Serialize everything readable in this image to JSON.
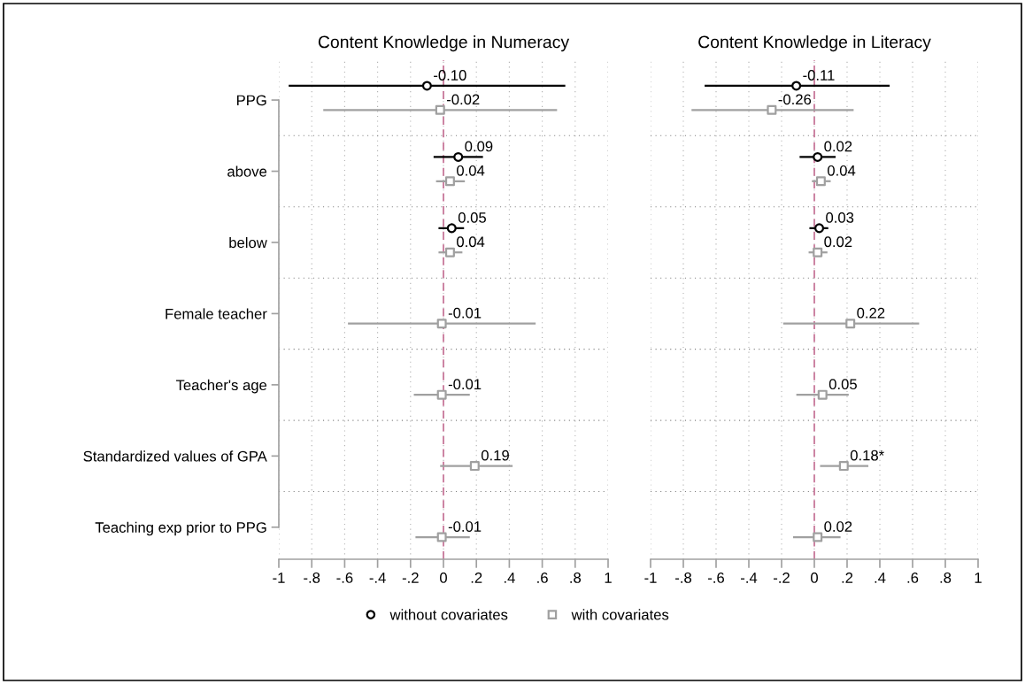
{
  "chart_data": [
    {
      "type": "scatter",
      "orientation": "horizontal",
      "title": "Content Knowledge in Numeracy",
      "categories": [
        "PPG",
        "above",
        "below",
        "Female teacher",
        "Teacher's age",
        "Standardized values of GPA",
        "Teaching exp prior to PPG"
      ],
      "series": [
        {
          "name": "without covariates",
          "color": "#000000",
          "marker": "circle",
          "values": [
            -0.1,
            0.09,
            0.05,
            null,
            null,
            null,
            null
          ],
          "errors": [
            [
              -0.94,
              0.74
            ],
            [
              -0.06,
              0.24
            ],
            [
              -0.03,
              0.125
            ],
            null,
            null,
            null,
            null
          ],
          "value_labels": [
            "-0.10",
            "0.09",
            "0.05",
            null,
            null,
            null,
            null
          ]
        },
        {
          "name": "with covariates",
          "color": "#a0a0a0",
          "marker": "square",
          "values": [
            -0.02,
            0.04,
            0.04,
            -0.01,
            -0.01,
            0.19,
            -0.01
          ],
          "errors": [
            [
              -0.73,
              0.69
            ],
            [
              -0.045,
              0.13
            ],
            [
              -0.03,
              0.115
            ],
            [
              -0.58,
              0.56
            ],
            [
              -0.18,
              0.16
            ],
            [
              -0.02,
              0.42
            ],
            [
              -0.17,
              0.16
            ]
          ],
          "value_labels": [
            "-0.02",
            "0.04",
            "0.04",
            "-0.01",
            "-0.01",
            "0.19",
            "-0.01"
          ]
        }
      ],
      "xlim": [
        -1,
        1
      ],
      "xticks": [
        -1,
        {
          "value": -0.8,
          "label": "-.8"
        },
        {
          "value": -0.6,
          "label": "-.6"
        },
        {
          "value": -0.4,
          "label": "-.4"
        },
        {
          "value": -0.2,
          "label": "-.2"
        },
        0,
        {
          "value": 0.2,
          "label": ".2"
        },
        {
          "value": 0.4,
          "label": ".4"
        },
        {
          "value": 0.6,
          "label": ".6"
        },
        {
          "value": 0.8,
          "label": ".8"
        },
        1
      ],
      "ref_lines": [
        {
          "axis": "x",
          "value": 0,
          "color": "#c9799b",
          "line_style": "dashed"
        }
      ],
      "grid": true,
      "legend": "bottom"
    },
    {
      "type": "scatter",
      "orientation": "horizontal",
      "title": "Content Knowledge in Literacy",
      "categories": [
        "PPG",
        "above",
        "below",
        "Female teacher",
        "Teacher's age",
        "Standardized values of GPA",
        "Teaching exp prior to PPG"
      ],
      "series": [
        {
          "name": "without covariates",
          "color": "#000000",
          "marker": "circle",
          "values": [
            -0.11,
            0.02,
            0.03,
            null,
            null,
            null,
            null
          ],
          "errors": [
            [
              -0.67,
              0.46
            ],
            [
              -0.09,
              0.13
            ],
            [
              -0.03,
              0.085
            ],
            null,
            null,
            null,
            null
          ],
          "value_labels": [
            "-0.11",
            "0.02",
            "0.03",
            null,
            null,
            null,
            null
          ]
        },
        {
          "name": "with covariates",
          "color": "#a0a0a0",
          "marker": "square",
          "values": [
            -0.26,
            0.04,
            0.02,
            0.22,
            0.05,
            0.18,
            0.02
          ],
          "errors": [
            [
              -0.75,
              0.24
            ],
            [
              -0.015,
              0.1
            ],
            [
              -0.035,
              0.08
            ],
            [
              -0.19,
              0.64
            ],
            [
              -0.11,
              0.21
            ],
            [
              0.035,
              0.33
            ],
            [
              -0.13,
              0.16
            ]
          ],
          "value_labels": [
            "-0.26",
            "0.04",
            "0.02",
            "0.22",
            "0.05",
            "0.18*",
            "0.02"
          ]
        }
      ],
      "xlim": [
        -1,
        1
      ],
      "xticks": [
        -1,
        {
          "value": -0.8,
          "label": "-.8"
        },
        {
          "value": -0.6,
          "label": "-.6"
        },
        {
          "value": -0.4,
          "label": "-.4"
        },
        {
          "value": -0.2,
          "label": "-.2"
        },
        0,
        {
          "value": 0.2,
          "label": ".2"
        },
        {
          "value": 0.4,
          "label": ".4"
        },
        {
          "value": 0.6,
          "label": ".6"
        },
        {
          "value": 0.8,
          "label": ".8"
        },
        1
      ],
      "ref_lines": [
        {
          "axis": "x",
          "value": 0,
          "color": "#c9799b",
          "line_style": "dashed"
        }
      ],
      "grid": true,
      "tick_labels": "x"
    }
  ]
}
